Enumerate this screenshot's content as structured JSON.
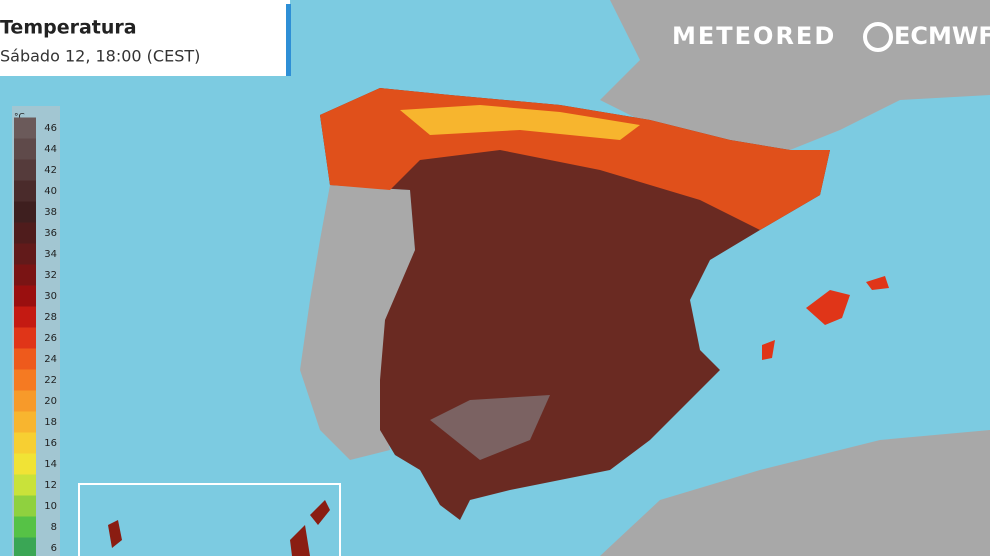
{
  "header": {
    "title": "Temperatura",
    "subtitle": "Sábado 12, 18:00 (CEST)"
  },
  "logos": [
    "METEORED",
    "ECMWF"
  ],
  "legend": {
    "unit": "°C",
    "ticks": [
      46,
      44,
      42,
      40,
      38,
      36,
      34,
      32,
      30,
      28,
      26,
      24,
      22,
      20,
      18,
      16,
      14,
      12,
      10,
      8,
      6
    ],
    "colors": [
      "#6b5a5a",
      "#5f4a4a",
      "#553b3b",
      "#4a2b2b",
      "#3e1f1f",
      "#4f1c1c",
      "#621a1a",
      "#7a1414",
      "#9a0f0f",
      "#c41a12",
      "#e03518",
      "#ee5a1c",
      "#f57a22",
      "#f79a2a",
      "#f8b52f",
      "#f7cf32",
      "#f1e335",
      "#c9e23a",
      "#8fd13f",
      "#56c246",
      "#3aa655"
    ]
  }
}
